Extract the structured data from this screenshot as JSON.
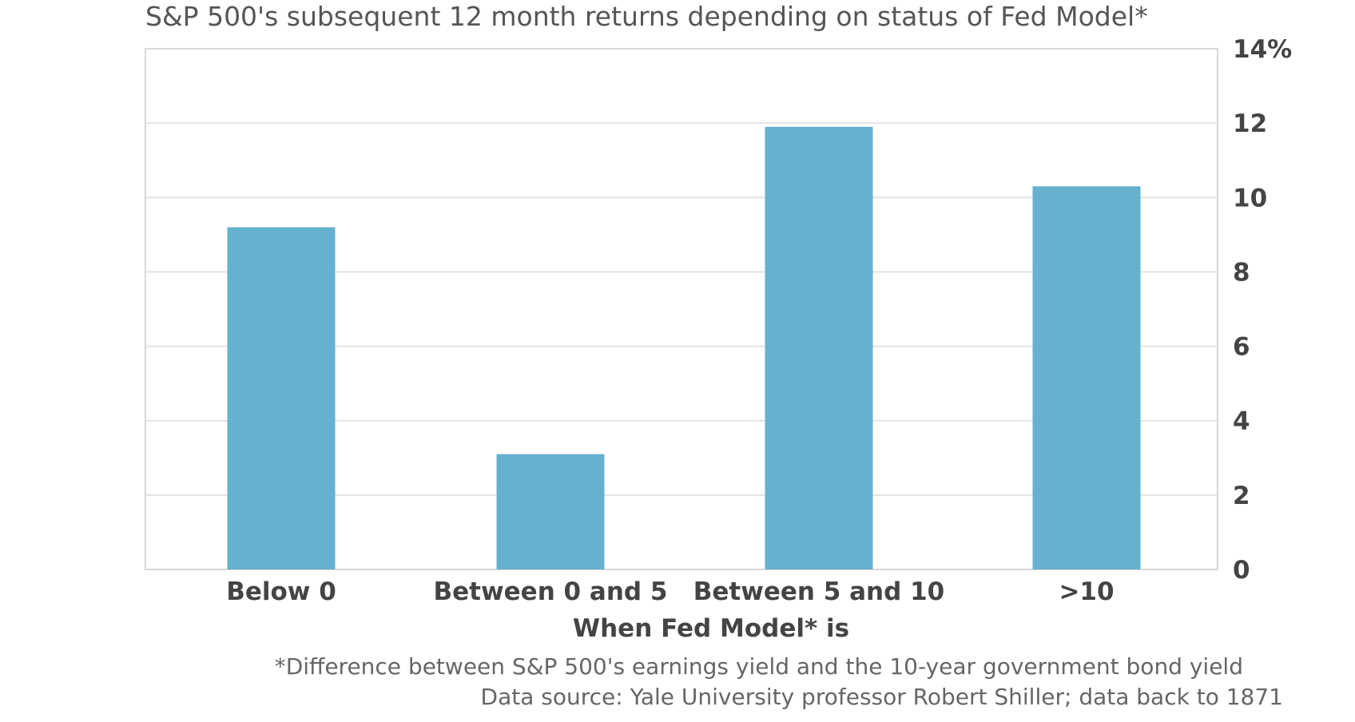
{
  "chart_data": {
    "type": "bar",
    "title": "S&P 500's subsequent 12 month returns depending on status of Fed Model*",
    "categories": [
      "Below 0",
      "Between 0 and 5",
      "Between 5 and 10",
      ">10"
    ],
    "values": [
      9.2,
      3.1,
      11.9,
      10.3
    ],
    "xlabel": "When Fed Model* is",
    "ylabel": "",
    "ylim": [
      0,
      14
    ],
    "y_ticks": [
      0,
      2,
      4,
      6,
      8,
      10,
      12,
      14
    ],
    "y_tick_labels": [
      "0",
      "2",
      "4",
      "6",
      "8",
      "10",
      "12",
      "14%"
    ],
    "y_axis_side": "right",
    "grid": true,
    "legend": "none",
    "footnote": "*Difference between S&P 500's earnings yield and the 10-year government bond yield",
    "source": "Data source: Yale University professor Robert Shiller; data back to 1871",
    "colors": {
      "bar": "#65b1cf",
      "grid": "#e3e3e3",
      "frame": "#d8d8d8"
    }
  }
}
